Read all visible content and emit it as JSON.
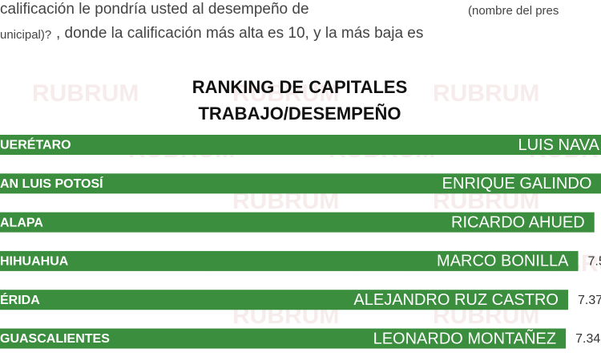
{
  "chart_data": {
    "type": "bar",
    "orientation": "horizontal",
    "question": {
      "line1": "calificación le pondría usted al desempeño de",
      "line1_note": "(nombre del pres",
      "line2_note": "unicipal)?",
      "line2": ", donde la calificación más alta es 10, y la más baja es"
    },
    "title": "RANKING DE CAPITALES",
    "subtitle": "TRABAJO/DESEMPEÑO",
    "watermark": "RUBRUM",
    "categories": [
      "UERÉTARO",
      "AN LUIS POTOSÍ",
      "ALAPA",
      "HIHUAHUA",
      "ÉRIDA",
      "GUASCALIENTES"
    ],
    "names": [
      "LUIS NAVA",
      "ENRIQUE GALINDO",
      "RICARDO AHUED",
      "MARCO BONILLA",
      "ALEJANDRO RUZ CASTRO",
      "LEONARDO MONTAÑEZ"
    ],
    "values": [
      7.9,
      7.8,
      7.71,
      7.5,
      7.37,
      7.34
    ],
    "value_labels": [
      null,
      null,
      null,
      "7.5",
      "7.37",
      "7.34"
    ],
    "color": "#3b8e3e"
  }
}
